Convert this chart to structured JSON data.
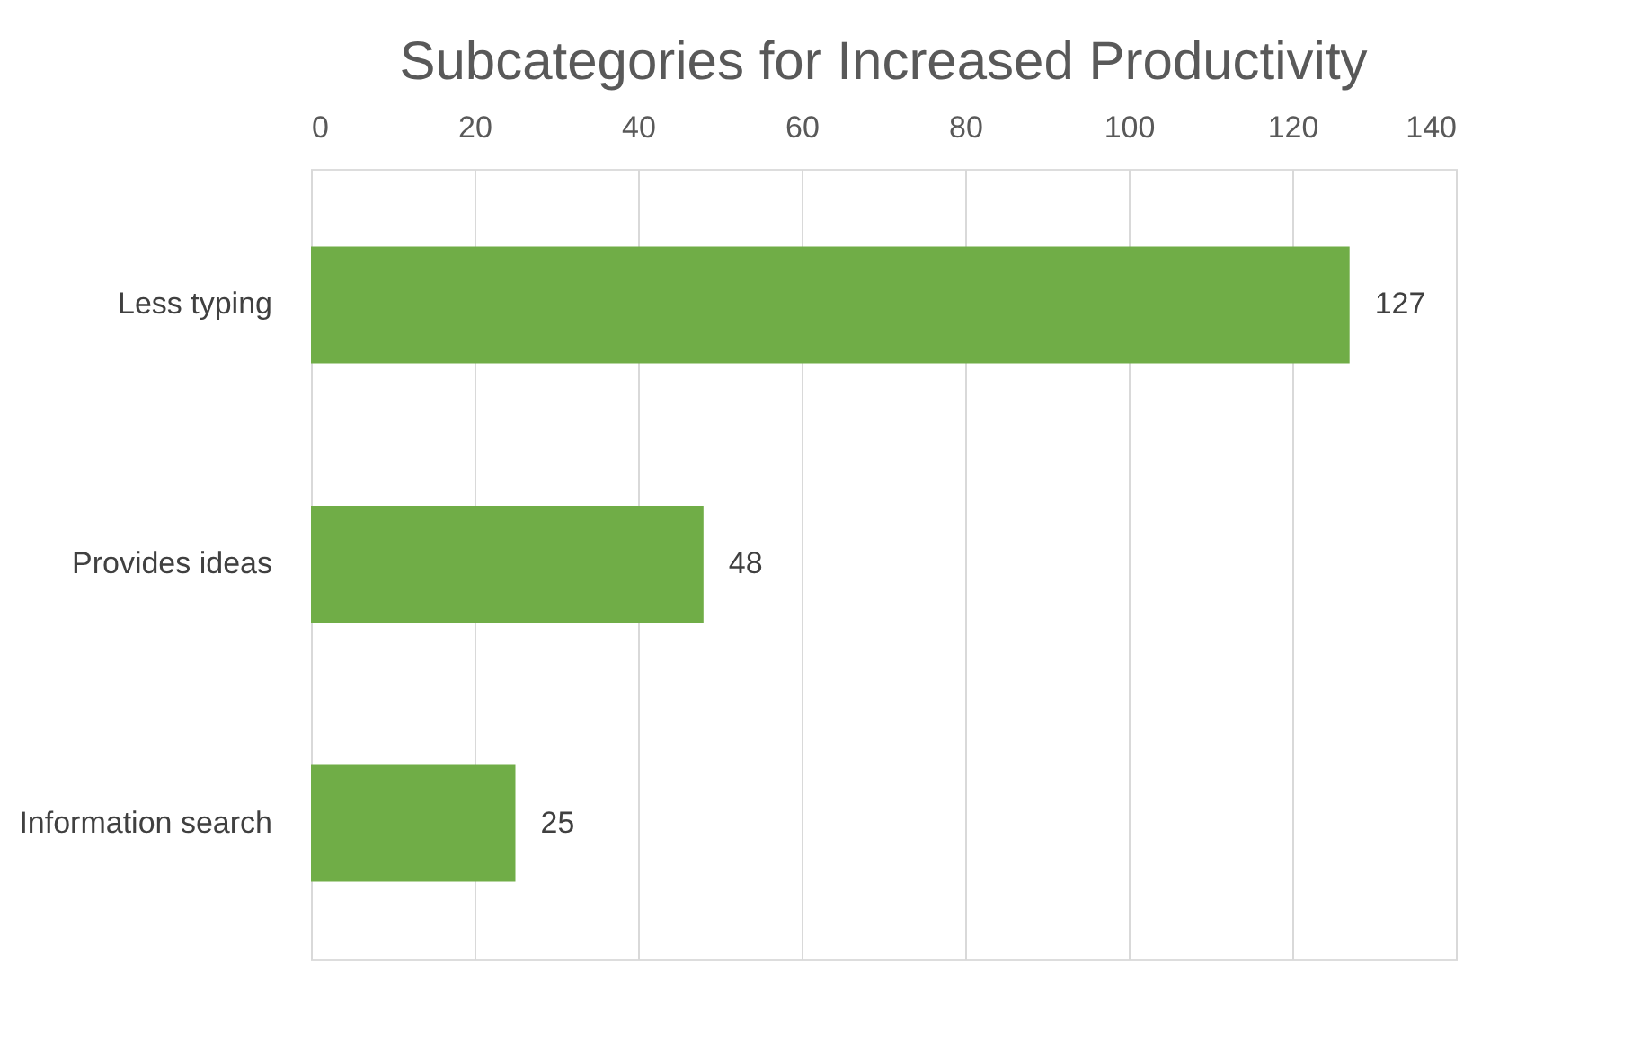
{
  "chart_data": {
    "type": "bar",
    "orientation": "horizontal",
    "title": "Subcategories for Increased Productivity",
    "categories": [
      "Less typing",
      "Provides ideas",
      "Information search"
    ],
    "values": [
      127,
      48,
      25
    ],
    "color": "#70ad47",
    "xlim": [
      0,
      140
    ],
    "xticks": [
      0,
      20,
      40,
      60,
      80,
      100,
      120,
      140
    ],
    "grid": "x",
    "data_labels": true
  }
}
